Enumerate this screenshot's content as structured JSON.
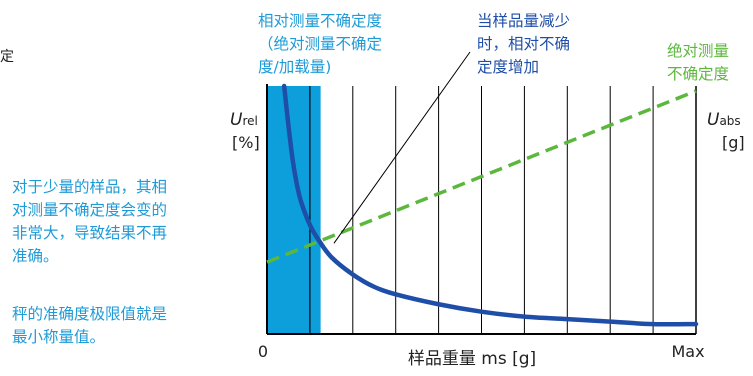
{
  "colors": {
    "rel_curve": "#1f4ea8",
    "abs_line": "#5cb83c",
    "shade": "#0d9fdb",
    "note_text": "#1e9bd7",
    "axis": "#000000",
    "text": "#222222"
  },
  "labels": {
    "left_edge_fragment": "定",
    "rel_title_lines": [
      "相对测量不确定度",
      "（绝对测量不确定",
      "度/加载量)"
    ],
    "decrease_note_lines": [
      "当样品量减少",
      "时，相对不确",
      "定度增加"
    ],
    "abs_title_lines": [
      "绝对测量",
      "不确定度"
    ],
    "u_rel_main": "U",
    "u_rel_sub": "rel",
    "u_rel_unit": "[%]",
    "u_abs_main": "U",
    "u_abs_sub": "abs",
    "u_abs_unit": "[g]",
    "side_note_1_lines": [
      "对于少量的样品，其相",
      "对测量不确定度会变的",
      "非常大，导致结果不再",
      "准确。"
    ],
    "side_note_2_lines": [
      "秤的准确度极限值就是",
      "最小称量值。"
    ],
    "x_axis_label": "样品重量 ms  [g]",
    "x_min_label": "0",
    "x_max_label": "Max"
  },
  "chart_data": {
    "type": "line",
    "xlabel": "样品重量 ms  [g]",
    "ylabel_left": "Urel [%]",
    "ylabel_right": "Uabs [g]",
    "x_tick_labels": [
      "0",
      "Max"
    ],
    "x_range": [
      0,
      1
    ],
    "y_range": [
      0,
      1
    ],
    "grid": "vertical",
    "vertical_grid_count": 10,
    "shaded_region_x": [
      0,
      0.125
    ],
    "series": [
      {
        "name": "相对测量不确定度",
        "style": "solid",
        "x": [
          0.04,
          0.05,
          0.06,
          0.07,
          0.08,
          0.1,
          0.12,
          0.15,
          0.2,
          0.25,
          0.3,
          0.4,
          0.5,
          0.6,
          0.7,
          0.8,
          0.9,
          1.0
        ],
        "y": [
          1.0,
          0.84,
          0.7,
          0.6,
          0.53,
          0.44,
          0.38,
          0.31,
          0.24,
          0.19,
          0.16,
          0.12,
          0.09,
          0.07,
          0.06,
          0.05,
          0.04,
          0.04
        ]
      },
      {
        "name": "绝对测量不确定度",
        "style": "dashed",
        "x": [
          0.0,
          1.0
        ],
        "y": [
          0.29,
          0.98
        ]
      }
    ],
    "callout_point": {
      "x": 0.17,
      "y": 0.39
    }
  }
}
